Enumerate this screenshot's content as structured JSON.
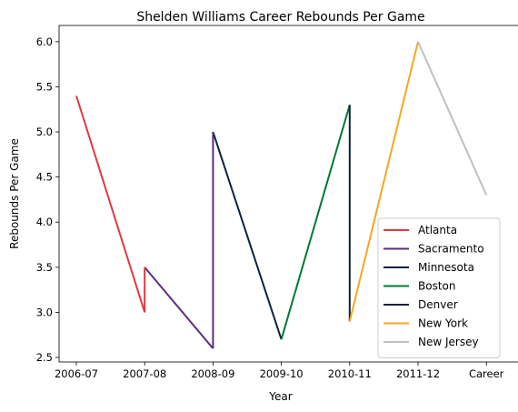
{
  "chart_data": {
    "type": "line",
    "title": "Shelden Williams Career Rebounds Per Game",
    "xlabel": "Year",
    "ylabel": "Rebounds Per Game",
    "categories": [
      "2006-07",
      "2007-08",
      "2008-09",
      "2009-10",
      "2010-11",
      "2011-12",
      "Career"
    ],
    "ylim": [
      2.45,
      6.18
    ],
    "yticks": [
      2.5,
      3.0,
      3.5,
      4.0,
      4.5,
      5.0,
      5.5,
      6.0
    ],
    "ytick_labels": [
      "2.5",
      "3.0",
      "3.5",
      "4.0",
      "4.5",
      "5.0",
      "5.5",
      "6.0"
    ],
    "grid": false,
    "legend_position": "lower-right",
    "series": [
      {
        "name": "Atlanta",
        "color": "#e03a3e",
        "points": [
          [
            "2006-07",
            5.4
          ],
          [
            "2007-08",
            3.0
          ]
        ]
      },
      {
        "name": "Sacramento",
        "color": "#5a2d81",
        "points": [
          [
            "2007-08",
            3.5
          ],
          [
            "2008-09",
            2.6
          ]
        ]
      },
      {
        "name": "Minnesota",
        "color": "#0c2340",
        "points": [
          [
            "2008-09",
            5.0
          ],
          [
            "2009-10",
            2.7
          ]
        ]
      },
      {
        "name": "Boston",
        "color": "#007a33",
        "points": [
          [
            "2009-10",
            2.7
          ],
          [
            "2010-11",
            5.3
          ]
        ]
      },
      {
        "name": "Denver",
        "color": "#0e2240",
        "points": [
          [
            "2010-11",
            5.3
          ],
          [
            "2010-11",
            2.9
          ]
        ]
      },
      {
        "name": "New York",
        "color": "#f5a623",
        "points": [
          [
            "2010-11",
            2.9
          ],
          [
            "2011-12",
            6.0
          ]
        ]
      },
      {
        "name": "New Jersey",
        "color": "#c0c0c0",
        "points": [
          [
            "2011-12",
            6.0
          ],
          [
            "Career",
            4.3
          ]
        ]
      }
    ],
    "connectors": [
      {
        "color": "#e03a3e",
        "points": [
          [
            "2007-08",
            3.0
          ],
          [
            "2007-08",
            3.5
          ]
        ]
      },
      {
        "color": "#5a2d81",
        "points": [
          [
            "2008-09",
            2.6
          ],
          [
            "2008-09",
            5.0
          ]
        ]
      }
    ]
  }
}
